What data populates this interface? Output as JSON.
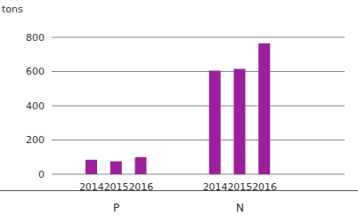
{
  "chart_data": {
    "type": "bar",
    "y_label": "tons",
    "groups": [
      {
        "name": "P",
        "categories": [
          "2014",
          "2015",
          "2016"
        ],
        "values": [
          85,
          75,
          100
        ]
      },
      {
        "name": "N",
        "categories": [
          "2014",
          "2015",
          "2016"
        ],
        "values": [
          605,
          615,
          765
        ]
      }
    ],
    "color": "#9c1f9c",
    "ylim": [
      0,
      800
    ],
    "yticks": [
      0,
      200,
      400,
      600,
      800
    ],
    "grid": true
  }
}
